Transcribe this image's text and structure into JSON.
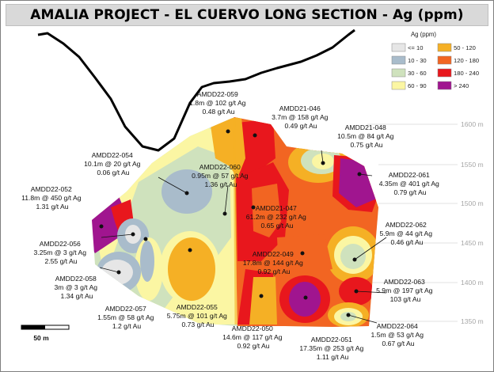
{
  "title": "AMALIA PROJECT - EL CUERVO LONG SECTION -  Ag (ppm)",
  "legend": {
    "title": "Ag (ppm)",
    "items": [
      {
        "label": "<= 10",
        "color": "#e6e6e6"
      },
      {
        "label": "50 - 120",
        "color": "#f5b025"
      },
      {
        "label": "10 - 30",
        "color": "#a9bccb"
      },
      {
        "label": "120 - 180",
        "color": "#f26522"
      },
      {
        "label": "30 - 60",
        "color": "#cfe2bd"
      },
      {
        "label": "180 - 240",
        "color": "#e8171d"
      },
      {
        "label": "60 - 90",
        "color": "#fbf6a3"
      },
      {
        "label": "> 240",
        "color": "#a0158f"
      }
    ]
  },
  "elevation_labels": [
    "1600 m",
    "1550 m",
    "1500 m",
    "1450 m",
    "1400 m",
    "1350 m"
  ],
  "scale_bar_label": "50 m",
  "drillholes": [
    {
      "id": "AMDD22-059",
      "ag": "1.8m @ 102 g/t Ag",
      "au": "0.48 g/t Au"
    },
    {
      "id": "AMDD21-046",
      "ag": "3.7m @ 158 g/t Ag",
      "au": "0.49 g/t Au"
    },
    {
      "id": "AMDD21-048",
      "ag": "10.5m @ 84 g/t Ag",
      "au": "0.75 g/t Au"
    },
    {
      "id": "AMDD22-054",
      "ag": "10.1m @ 20 g/t Ag",
      "au": "0.06 g/t Au"
    },
    {
      "id": "AMDD22-060",
      "ag": "0.95m @ 57 g/t Ag",
      "au": "1.36 g/t Au"
    },
    {
      "id": "AMDD22-061",
      "ag": "4.35m @ 401 g/t Ag",
      "au": "0.79 g/t Au"
    },
    {
      "id": "AMDD22-052",
      "ag": "11.8m @ 450 g/t Ag",
      "au": "1.31 g/t Au"
    },
    {
      "id": "AMDD21-047",
      "ag": "61.2m @ 232 g/t Ag",
      "au": "0.65 g/t Au"
    },
    {
      "id": "AMDD22-062",
      "ag": "5.9m @ 44 g/t Ag",
      "au": "0.46 g/t Au"
    },
    {
      "id": "AMDD22-056",
      "ag": "3.25m @ 3 g/t Ag",
      "au": "2.55 g/t Au"
    },
    {
      "id": "AMDD22-049",
      "ag": "17.8m @ 144 g/t Ag",
      "au": "0.92 g/t Au"
    },
    {
      "id": "AMDD22-058",
      "ag": "3m @ 3 g/t Ag",
      "au": "1.34 g/t Au"
    },
    {
      "id": "AMDD22-063",
      "ag": "5.9m @ 197 g/t Ag",
      "au": "103 g/t Au"
    },
    {
      "id": "AMDD22-057",
      "ag": "1.55m @ 58 g/t Ag",
      "au": "1.2 g/t Au"
    },
    {
      "id": "AMDD22-055",
      "ag": "5.75m @ 101 g/t Ag",
      "au": "0.73 g/t Au"
    },
    {
      "id": "AMDD22-050",
      "ag": "14.6m @ 117 g/t Ag",
      "au": "0.92 g/t Au"
    },
    {
      "id": "AMDD22-051",
      "ag": "17.35m @ 253 g/t Ag",
      "au": "1.11 g/t Au"
    },
    {
      "id": "AMDD22-064",
      "ag": "1.5m @ 53 g/t Ag",
      "au": "0.67 g/t Au"
    }
  ]
}
